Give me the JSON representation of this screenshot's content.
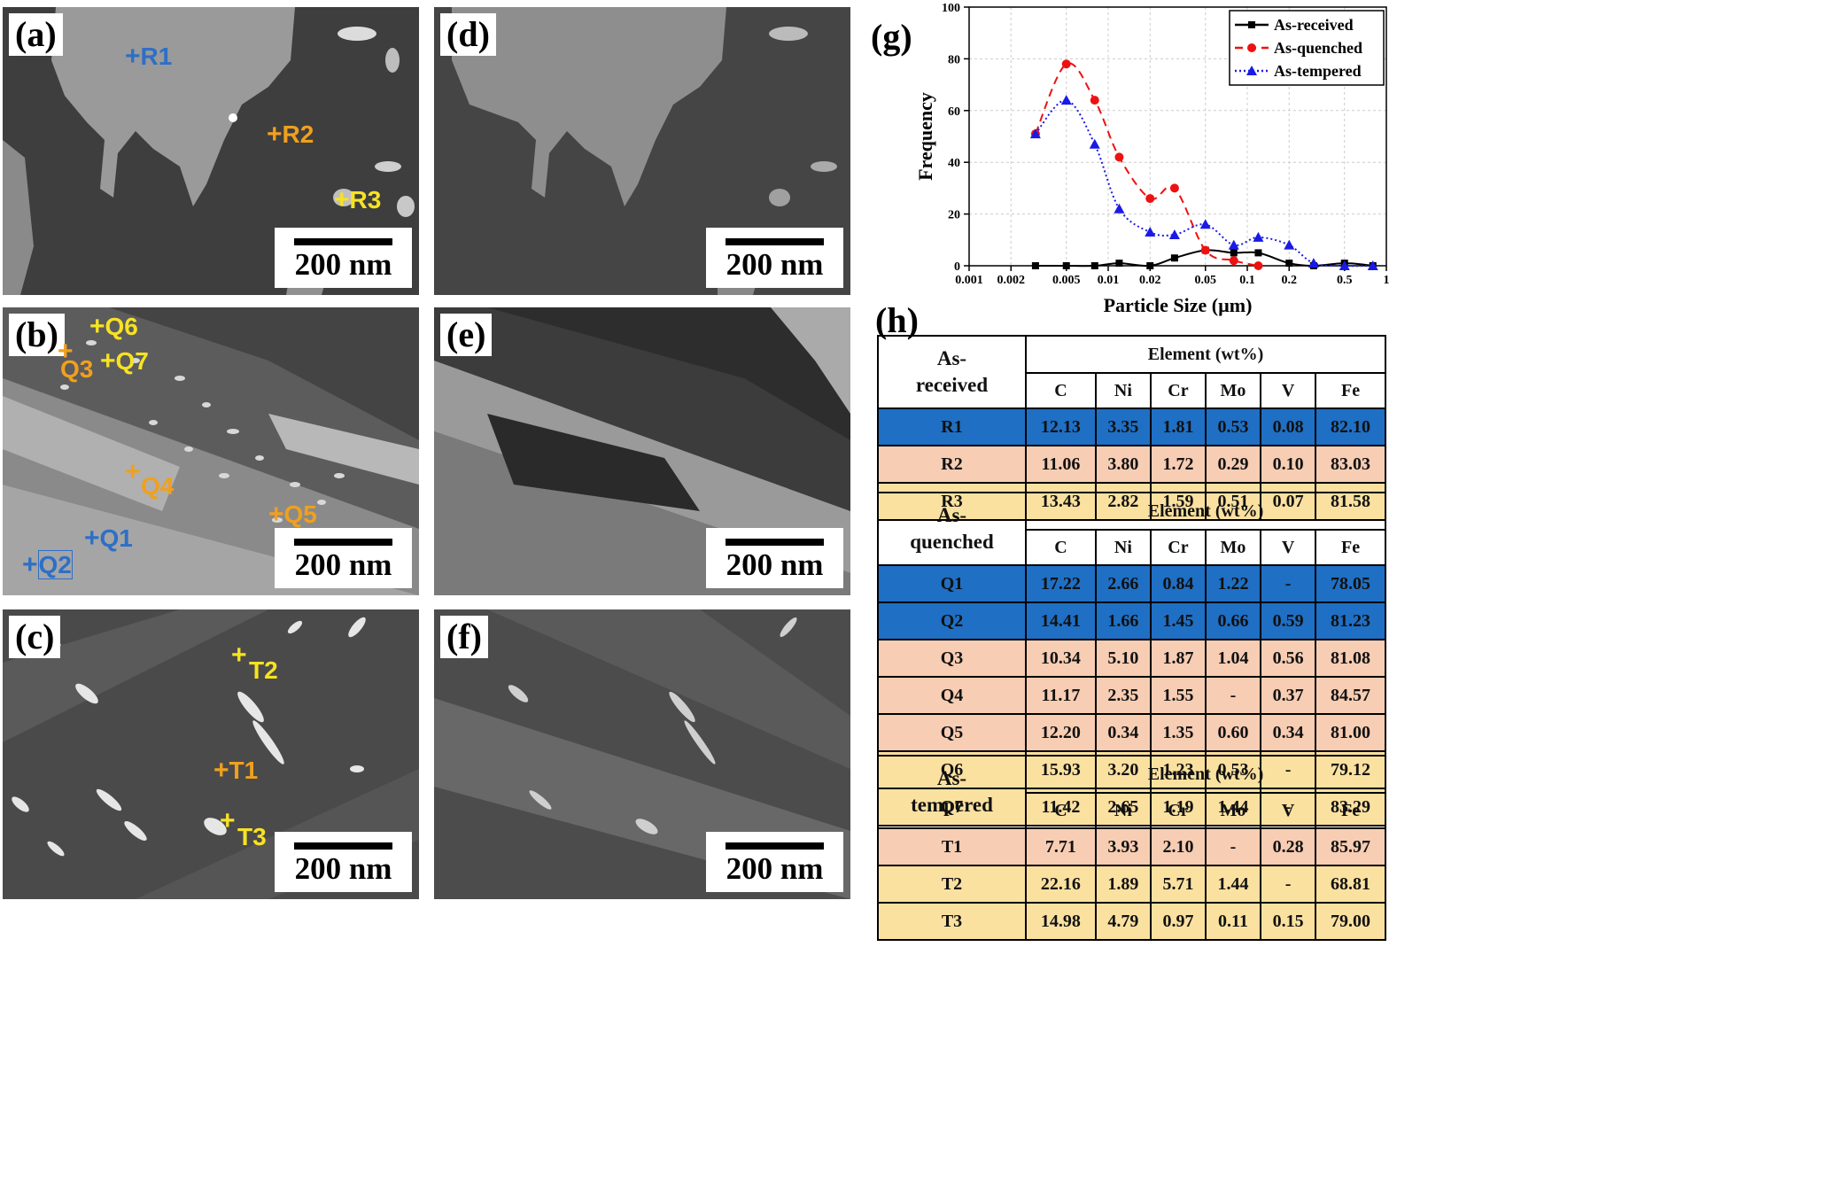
{
  "panels": {
    "a": {
      "label": "(a)",
      "scale": "200 nm"
    },
    "b": {
      "label": "(b)",
      "scale": "200 nm"
    },
    "c": {
      "label": "(c)",
      "scale": "200 nm"
    },
    "d": {
      "label": "(d)",
      "scale": "200 nm"
    },
    "e": {
      "label": "(e)",
      "scale": "200 nm"
    },
    "f": {
      "label": "(f)",
      "scale": "200 nm"
    }
  },
  "markers": {
    "R1": "R1",
    "R2": "R2",
    "R3": "R3",
    "Q1": "Q1",
    "Q2": "Q2",
    "Q3": "Q3",
    "Q4": "Q4",
    "Q5": "Q5",
    "Q6": "Q6",
    "Q7": "Q7",
    "T1": "T1",
    "T2": "T2",
    "T3": "T3"
  },
  "marker_colors": {
    "blue": "#2e6fc6",
    "orange": "#f0a01e",
    "yellow": "#f7e224"
  },
  "chart_label": "(g)",
  "chart_data": {
    "type": "line",
    "xlabel": "Particle Size (µm)",
    "ylabel": "Frequency",
    "x_scale": "log",
    "xlim": [
      0.001,
      1
    ],
    "ylim": [
      0,
      100
    ],
    "x_ticks": [
      "0.001",
      "0.002",
      "0.005",
      "0.01",
      "0.02",
      "0.05",
      "0.1",
      "0.2",
      "0.5",
      "1"
    ],
    "y_ticks": [
      "0",
      "20",
      "40",
      "60",
      "80",
      "100"
    ],
    "grid": true,
    "legend_position": "top-right",
    "series": [
      {
        "name": "As-received",
        "color": "#000000",
        "marker": "square",
        "dash": "solid",
        "x": [
          0.003,
          0.005,
          0.008,
          0.012,
          0.02,
          0.03,
          0.05,
          0.08,
          0.12,
          0.2,
          0.3,
          0.5,
          0.8
        ],
        "y": [
          0,
          0,
          0,
          1,
          0,
          3,
          6,
          5,
          5,
          1,
          0,
          1,
          0
        ]
      },
      {
        "name": "As-quenched",
        "color": "#ee1111",
        "marker": "circle",
        "dash": "dashed",
        "x": [
          0.003,
          0.005,
          0.008,
          0.012,
          0.02,
          0.03,
          0.05,
          0.08,
          0.12
        ],
        "y": [
          51,
          78,
          64,
          42,
          26,
          30,
          6,
          2,
          0
        ]
      },
      {
        "name": "As-tempered",
        "color": "#1a1ae6",
        "marker": "triangle",
        "dash": "dotted",
        "x": [
          0.003,
          0.005,
          0.008,
          0.012,
          0.02,
          0.03,
          0.05,
          0.08,
          0.12,
          0.2,
          0.3,
          0.5,
          0.8
        ],
        "y": [
          51,
          64,
          47,
          22,
          13,
          12,
          16,
          8,
          11,
          8,
          1,
          0,
          0
        ]
      }
    ]
  },
  "table_label": "(h)",
  "tables": [
    {
      "group": "As-\nreceived",
      "group_line1": "As-",
      "group_line2": "received",
      "header": "Element (wt%)",
      "cols": [
        "C",
        "Ni",
        "Cr",
        "Mo",
        "V",
        "Fe"
      ],
      "rows": [
        {
          "id": "R1",
          "color": "blue",
          "vals": [
            "12.13",
            "3.35",
            "1.81",
            "0.53",
            "0.08",
            "82.10"
          ]
        },
        {
          "id": "R2",
          "color": "pink",
          "vals": [
            "11.06",
            "3.80",
            "1.72",
            "0.29",
            "0.10",
            "83.03"
          ]
        },
        {
          "id": "R3",
          "color": "yellow",
          "vals": [
            "13.43",
            "2.82",
            "1.59",
            "0.51",
            "0.07",
            "81.58"
          ]
        }
      ]
    },
    {
      "group_line1": "As-",
      "group_line2": "quenched",
      "header": "Element (wt%)",
      "cols": [
        "C",
        "Ni",
        "Cr",
        "Mo",
        "V",
        "Fe"
      ],
      "rows": [
        {
          "id": "Q1",
          "color": "blue",
          "vals": [
            "17.22",
            "2.66",
            "0.84",
            "1.22",
            "-",
            "78.05"
          ]
        },
        {
          "id": "Q2",
          "color": "blue",
          "vals": [
            "14.41",
            "1.66",
            "1.45",
            "0.66",
            "0.59",
            "81.23"
          ]
        },
        {
          "id": "Q3",
          "color": "pink",
          "vals": [
            "10.34",
            "5.10",
            "1.87",
            "1.04",
            "0.56",
            "81.08"
          ]
        },
        {
          "id": "Q4",
          "color": "pink",
          "vals": [
            "11.17",
            "2.35",
            "1.55",
            "-",
            "0.37",
            "84.57"
          ]
        },
        {
          "id": "Q5",
          "color": "pink",
          "vals": [
            "12.20",
            "0.34",
            "1.35",
            "0.60",
            "0.34",
            "81.00"
          ]
        },
        {
          "id": "Q6",
          "color": "yellow",
          "vals": [
            "15.93",
            "3.20",
            "1.23",
            "0.53",
            "-",
            "79.12"
          ]
        },
        {
          "id": "Q7",
          "color": "yellow",
          "vals": [
            "11.42",
            "2.65",
            "1.19",
            "1.44",
            "-",
            "83.29"
          ]
        }
      ]
    },
    {
      "group_line1": "As-",
      "group_line2": "tempered",
      "header": "Element (wt%)",
      "cols": [
        "C",
        "Ni",
        "Cr",
        "Mo",
        "V",
        "Fe"
      ],
      "rows": [
        {
          "id": "T1",
          "color": "pink",
          "vals": [
            "7.71",
            "3.93",
            "2.10",
            "-",
            "0.28",
            "85.97"
          ]
        },
        {
          "id": "T2",
          "color": "yellow",
          "vals": [
            "22.16",
            "1.89",
            "5.71",
            "1.44",
            "-",
            "68.81"
          ]
        },
        {
          "id": "T3",
          "color": "yellow",
          "vals": [
            "14.98",
            "4.79",
            "0.97",
            "0.11",
            "0.15",
            "79.00"
          ]
        }
      ]
    }
  ]
}
